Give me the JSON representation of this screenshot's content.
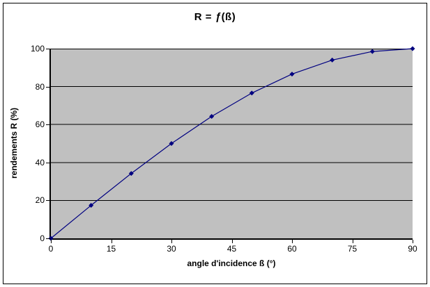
{
  "chart_data": {
    "type": "line",
    "title": "R = ƒ(ß)",
    "xlabel": "angle d'incidence ß (°)",
    "ylabel": "rendements R (%)",
    "x": [
      0,
      10,
      20,
      30,
      40,
      50,
      60,
      70,
      80,
      90
    ],
    "series": [
      {
        "name": "R",
        "values": [
          0,
          17.4,
          34.2,
          50,
          64.3,
          76.6,
          86.6,
          94,
          98.5,
          100
        ]
      }
    ],
    "x_ticks": [
      0,
      15,
      30,
      45,
      60,
      75,
      90
    ],
    "y_ticks": [
      0,
      20,
      40,
      60,
      80,
      100
    ],
    "xlim": [
      0,
      90
    ],
    "ylim": [
      0,
      100
    ],
    "grid": "horizontal",
    "legend": "none",
    "marker": "diamond",
    "colors": {
      "line": "#000080",
      "marker": "#000080",
      "plot_bg": "#C0C0C0",
      "gridline": "#000000",
      "axis": "#000000",
      "text": "#000000",
      "background": "#FFFFFF"
    }
  }
}
